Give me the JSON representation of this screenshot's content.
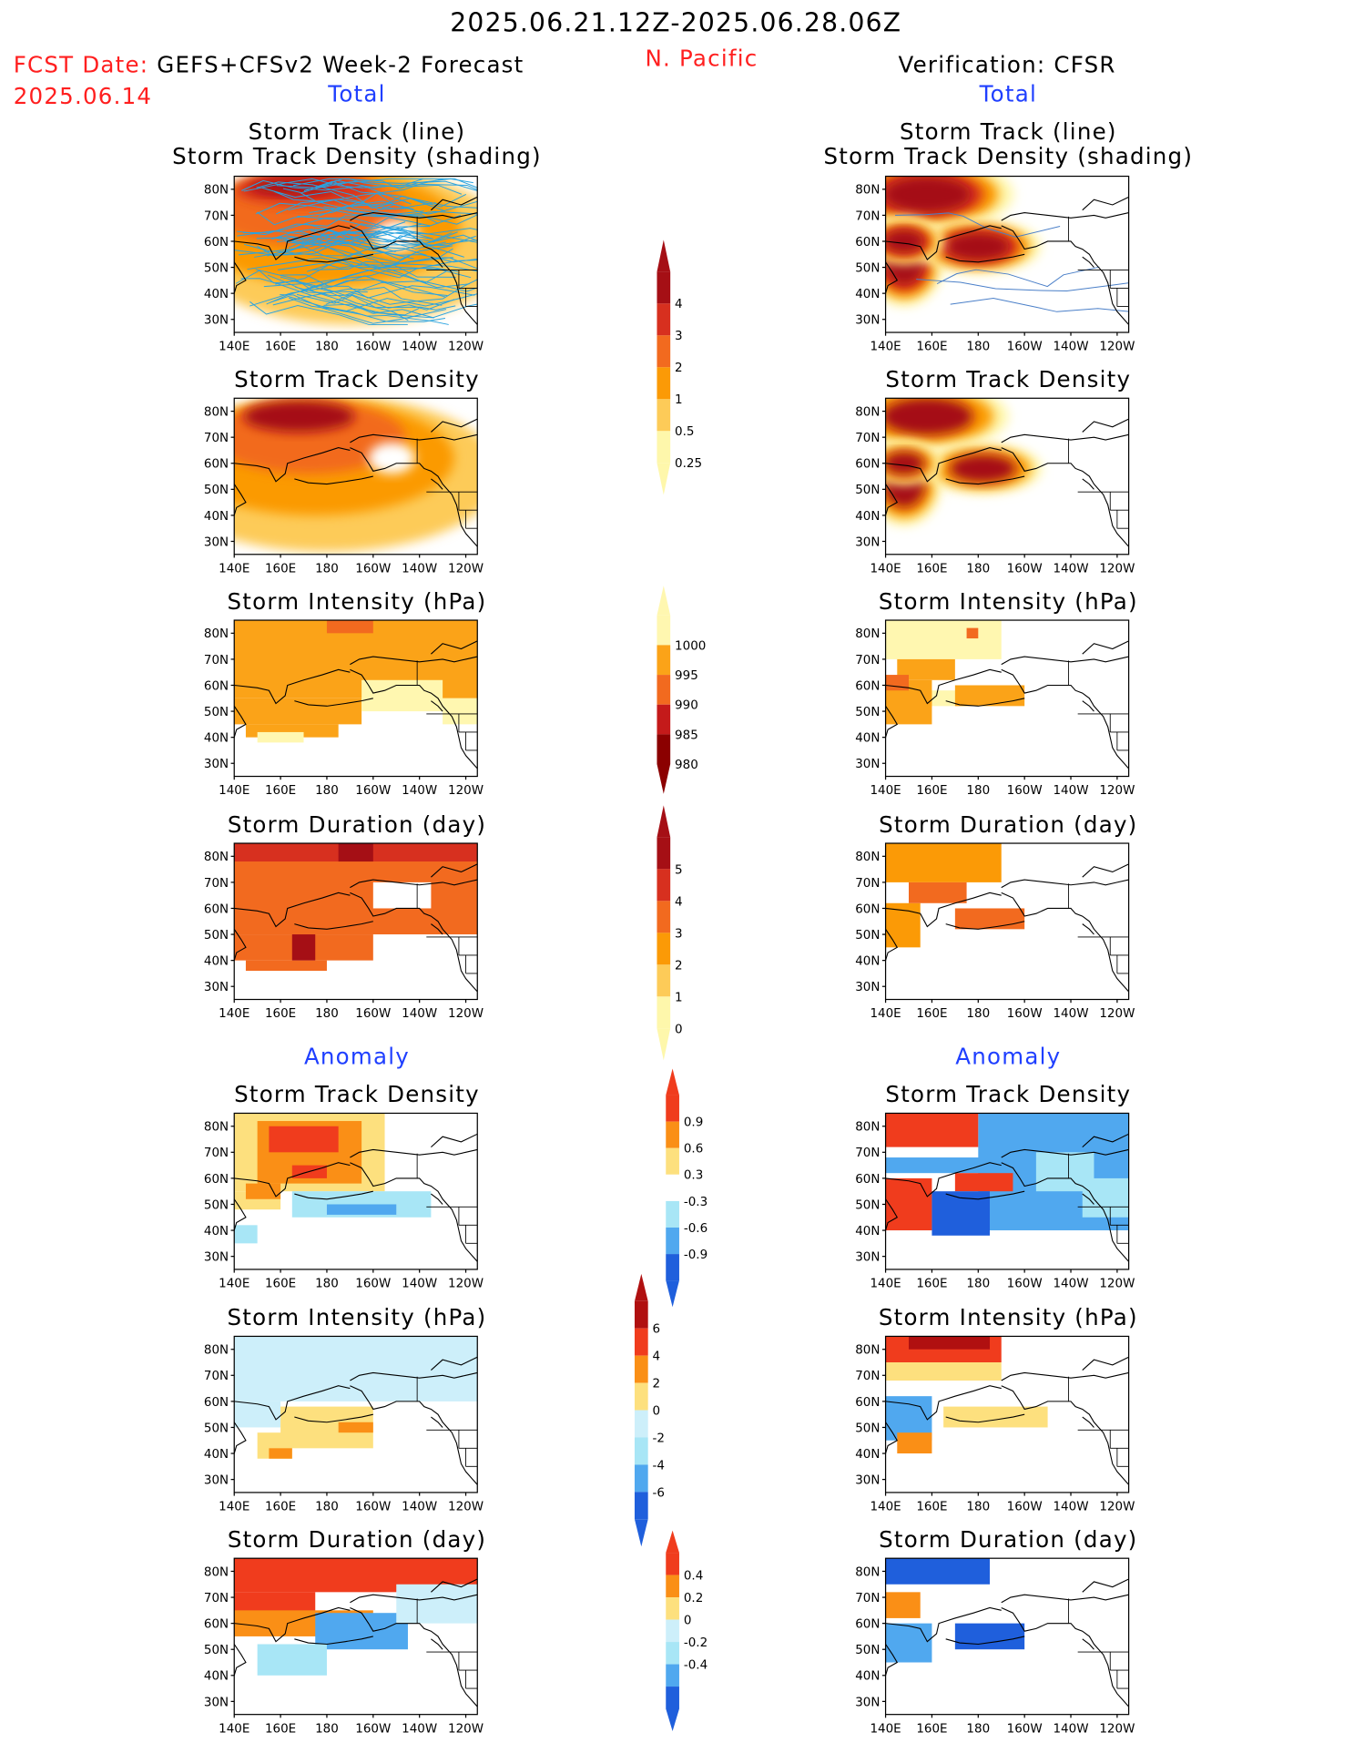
{
  "header": {
    "date_range": "2025.06.21.12Z-2025.06.28.06Z",
    "region": "N. Pacific",
    "fcst_label": "FCST Date:",
    "fcst_model": "GEFS+CFSv2 Week-2 Forecast",
    "fcst_date": "2025.06.14",
    "verification": "Verification: CFSR",
    "total_left": "Total",
    "total_right": "Total",
    "anomaly_left": "Anomaly",
    "anomaly_right": "Anomaly"
  },
  "panel_titles": {
    "track_line": "Storm Track (line)",
    "track_shading": "Storm Track Density (shading)",
    "density": "Storm Track Density",
    "intensity": "Storm Intensity (hPa)",
    "duration": "Storm Duration (day)"
  },
  "map_axes": {
    "x_ticks": [
      "140E",
      "160E",
      "180",
      "160W",
      "140W",
      "120W"
    ],
    "y_ticks": [
      "80N",
      "70N",
      "60N",
      "50N",
      "40N",
      "30N"
    ],
    "lon_range": "140E-115W",
    "lat_range": "25N-85N"
  },
  "colors": {
    "title_red": "#ff1f1f",
    "label_blue": "#1f3fff",
    "storm_track_line_forecast": "#29a3e0",
    "storm_track_line_verification": "#4a7fc8"
  },
  "colorbars": {
    "density_total": {
      "labels": [
        "4",
        "3",
        "2",
        "1",
        "0.5",
        "0.25"
      ],
      "colors": [
        "#a50f15",
        "#d7301f",
        "#f26a1f",
        "#fb9a06",
        "#fdcb58",
        "#fef7ab"
      ]
    },
    "intensity_total": {
      "labels": [
        "1000",
        "995",
        "990",
        "985",
        "980"
      ],
      "colors": [
        "#fff7b0",
        "#fba318",
        "#f26a1f",
        "#c41a1a",
        "#8b0000"
      ]
    },
    "duration_total": {
      "labels": [
        "5",
        "4",
        "3",
        "2",
        "1",
        "0"
      ],
      "colors": [
        "#a50f15",
        "#d7301f",
        "#f26a1f",
        "#fb9a06",
        "#fdcb58",
        "#fef7ab"
      ]
    },
    "density_anomaly": {
      "labels": [
        "0.9",
        "0.6",
        "0.3",
        "-0.3",
        "-0.6",
        "-0.9"
      ],
      "colors": [
        "#f03c1d",
        "#fa8f16",
        "#fde07e",
        "#ffffff",
        "#a8e6f6",
        "#50a8ef",
        "#1f5fdc"
      ]
    },
    "intensity_anomaly": {
      "labels": [
        "6",
        "4",
        "2",
        "0",
        "-2",
        "-4",
        "-6"
      ],
      "colors": [
        "#b01010",
        "#f03c1d",
        "#fa8f16",
        "#fde07e",
        "#cdeffa",
        "#a8e6f6",
        "#50a8ef",
        "#1f5fdc"
      ]
    },
    "duration_anomaly": {
      "labels": [
        "0.4",
        "0.2",
        "0",
        "-0.2",
        "-0.4"
      ],
      "colors": [
        "#f03c1d",
        "#fa8f16",
        "#fde07e",
        "#cdeffa",
        "#a8e6f6",
        "#50a8ef",
        "#1f5fdc"
      ]
    }
  },
  "chart_data": [
    {
      "type": "heatmap",
      "panel": "forecast-total-track-line-density",
      "title": "Storm Track (line) / Storm Track Density (shading)",
      "units": "count",
      "pattern": "broad 1-4 density across Arctic and N. Pacific north of 40N; maxima >4 near 75-82N 160E-180",
      "scale_levels": [
        0.25,
        0.5,
        1,
        2,
        3,
        4
      ]
    },
    {
      "type": "heatmap",
      "panel": "verification-total-track-line-density",
      "title": "Storm Track (line) / Storm Track Density (shading)",
      "units": "count",
      "pattern": "three maxima >4: 75-82N 145-175E; 55-60N 175E-170W; 45-60N 140-155E",
      "scale_levels": [
        0.25,
        0.5,
        1,
        2,
        3,
        4
      ]
    },
    {
      "type": "heatmap",
      "panel": "forecast-total-density",
      "title": "Storm Track Density",
      "pattern": "values 1-3 widely, 3-4 along 72-80N 150E-170W"
    },
    {
      "type": "heatmap",
      "panel": "verification-total-density",
      "title": "Storm Track Density",
      "pattern": "maxima >4 at 78N 160E, 58N 180, 50N 150E"
    },
    {
      "type": "heatmap",
      "panel": "forecast-total-intensity",
      "title": "Storm Intensity (hPa)",
      "pattern": "990-995 over most of domain, 995-1000 near 50-60N 160W-130W and 40N 160E"
    },
    {
      "type": "heatmap",
      "panel": "verification-total-intensity",
      "title": "Storm Intensity (hPa)",
      "pattern": "990-995 north of 55N and near 57N 180; 985-990 near 60N 145E"
    },
    {
      "type": "heatmap",
      "panel": "forecast-total-duration",
      "title": "Storm Duration (day)",
      "pattern": "2-3 days widely; 3-4 days near 80N 170W and 50N 160E"
    },
    {
      "type": "heatmap",
      "panel": "verification-total-duration",
      "title": "Storm Duration (day)",
      "pattern": "1-2 days north of 70N; 2-3 days 55-60N 170E-170W"
    },
    {
      "type": "heatmap",
      "panel": "forecast-anomaly-density",
      "title": "Storm Track Density",
      "pattern": "+0.6 to +0.9 at 60-80N 150E-170W; -0.3 to -0.6 along 45-50N 170E-140W"
    },
    {
      "type": "heatmap",
      "panel": "verification-anomaly-density",
      "title": "Storm Track Density",
      "pattern": "+0.9 at 75-80N 150-175E, 55N 180, 50N 145E; -0.6 to -0.9 over 40-75N 160E-120W"
    },
    {
      "type": "heatmap",
      "panel": "forecast-anomaly-intensity",
      "title": "Storm Intensity (hPa)",
      "pattern": "-2 to 0 north of 60N; 0 to +4 near 45-55N 160E-160W"
    },
    {
      "type": "heatmap",
      "panel": "verification-anomaly-intensity",
      "title": "Storm Intensity (hPa)",
      "pattern": "+4 to +6 near 82N 170E; -4 to -6 near 50-60N 145E"
    },
    {
      "type": "heatmap",
      "panel": "forecast-anomaly-duration",
      "title": "Storm Duration (day)",
      "pattern": "+0.4 north of 70N; -0.2 to -0.4 near 45-60N 160E-170W"
    },
    {
      "type": "heatmap",
      "panel": "verification-anomaly-duration",
      "title": "Storm Duration (day)",
      "pattern": "-0.4 at 75-82N 150E-175E and 55N 170E-170W; +0.2 near 65N 145E"
    }
  ]
}
